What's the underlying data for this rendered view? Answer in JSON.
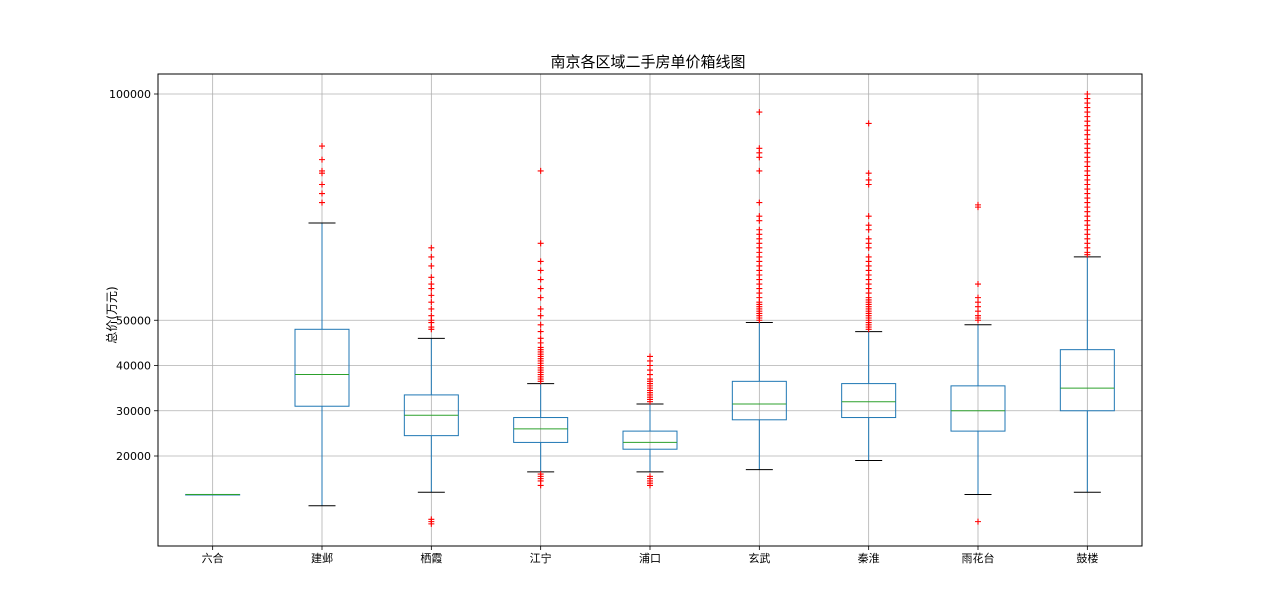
{
  "chart_data": {
    "type": "boxplot",
    "title": "南京各区域二手房单价箱线图",
    "ylabel": "总价(万元)",
    "xlabel": "",
    "ylim": [
      0,
      105000
    ],
    "yticks": [
      20000,
      30000,
      40000,
      50000,
      100000
    ],
    "grid": true,
    "colors": {
      "box": "#1f77b4",
      "median": "#2ca02c",
      "whisker_cap": "#000000",
      "outlier": "#ff0000",
      "grid": "#b0b0b0"
    },
    "categories": [
      "六合",
      "建邺",
      "栖霞",
      "江宁",
      "浦口",
      "玄武",
      "秦淮",
      "雨花台",
      "鼓楼"
    ],
    "boxes": [
      {
        "name": "六合",
        "whislo": 11500,
        "q1": 11500,
        "med": 11500,
        "q3": 11500,
        "whishi": 11500,
        "fliers": []
      },
      {
        "name": "建邺",
        "whislo": 9000,
        "q1": 31000,
        "med": 38000,
        "q3": 48000,
        "whishi": 71500,
        "fliers": [
          76000,
          78000,
          80000,
          82500,
          83000,
          85500,
          88500
        ]
      },
      {
        "name": "栖霞",
        "whislo": 12000,
        "q1": 24500,
        "med": 29000,
        "q3": 33500,
        "whishi": 46000,
        "fliers": [
          5000,
          5500,
          6000,
          48000,
          48500,
          49500,
          50000,
          51000,
          52500,
          54000,
          55500,
          57000,
          58000,
          59500,
          62000,
          64000,
          66000
        ]
      },
      {
        "name": "江宁",
        "whislo": 16500,
        "q1": 23000,
        "med": 26000,
        "q3": 28500,
        "whishi": 36000,
        "fliers": [
          13500,
          14500,
          15000,
          15500,
          16000,
          36500,
          37000,
          37500,
          38000,
          38500,
          39000,
          39500,
          40000,
          40500,
          41000,
          41500,
          42000,
          42500,
          43000,
          43500,
          44000,
          45000,
          46000,
          47500,
          49000,
          51000,
          52500,
          55000,
          57000,
          59000,
          61000,
          63000,
          67000,
          83000
        ]
      },
      {
        "name": "浦口",
        "whislo": 16500,
        "q1": 21500,
        "med": 23000,
        "q3": 25500,
        "whishi": 31500,
        "fliers": [
          13500,
          14000,
          14500,
          15000,
          15500,
          32000,
          32500,
          33000,
          33500,
          34000,
          34500,
          35000,
          35500,
          36000,
          36500,
          37000,
          38000,
          39000,
          40000,
          41000,
          42000
        ]
      },
      {
        "name": "玄武",
        "whislo": 17000,
        "q1": 28000,
        "med": 31500,
        "q3": 36500,
        "whishi": 49500,
        "fliers": [
          50000,
          50500,
          51000,
          51500,
          52000,
          52500,
          53000,
          53500,
          54000,
          55000,
          56000,
          57000,
          58000,
          59000,
          60000,
          61000,
          62000,
          63000,
          64000,
          65000,
          66000,
          67000,
          68000,
          69000,
          70000,
          72000,
          73000,
          76000,
          83000,
          86000,
          87000,
          88000,
          96000
        ]
      },
      {
        "name": "秦淮",
        "whislo": 19000,
        "q1": 28500,
        "med": 32000,
        "q3": 36000,
        "whishi": 47500,
        "fliers": [
          48000,
          48500,
          49000,
          49500,
          50000,
          50500,
          51000,
          51500,
          52000,
          52500,
          53000,
          53500,
          54000,
          54500,
          55000,
          56000,
          57000,
          58000,
          59000,
          60000,
          61000,
          62000,
          63000,
          64000,
          66000,
          67000,
          68000,
          70000,
          71000,
          73000,
          80000,
          81000,
          82500,
          93500
        ]
      },
      {
        "name": "雨花台",
        "whislo": 11500,
        "q1": 25500,
        "med": 30000,
        "q3": 35500,
        "whishi": 49000,
        "fliers": [
          5500,
          50000,
          50500,
          51000,
          52000,
          53000,
          54000,
          55000,
          58000,
          75000,
          75500
        ]
      },
      {
        "name": "鼓楼",
        "whislo": 12000,
        "q1": 30000,
        "med": 35000,
        "q3": 43500,
        "whishi": 64000,
        "fliers": [
          64500,
          65000,
          66000,
          67000,
          68000,
          69000,
          70000,
          71000,
          72000,
          73000,
          74000,
          75000,
          76000,
          77000,
          78000,
          79000,
          80000,
          81000,
          82000,
          83000,
          84000,
          85000,
          86000,
          87000,
          88000,
          89000,
          90000,
          91000,
          92000,
          93000,
          94000,
          95000,
          96000,
          97000,
          98000,
          99000,
          100000
        ]
      }
    ]
  }
}
